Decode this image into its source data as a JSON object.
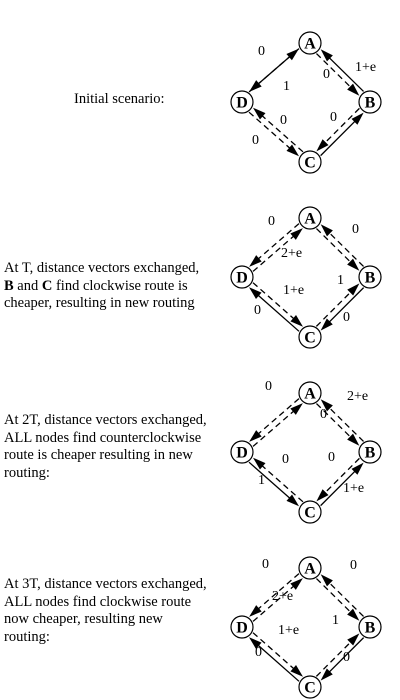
{
  "nodes": {
    "A": "A",
    "B": "B",
    "C": "C",
    "D": "D"
  },
  "panels": [
    {
      "caption": [
        {
          "text": "Initial scenario:",
          "bold": ""
        }
      ],
      "labels": {
        "DA": "0",
        "DB": "1",
        "BA": "1+e",
        "AB": "0",
        "CD": "0",
        "DC": "0",
        "BC": "0"
      }
    },
    {
      "caption": [
        {
          "text": "At T, distance vectors exchanged,",
          "bold": ""
        },
        {
          "bold": "B",
          "text": " and ",
          "bold2": "C",
          "text2": " find clockwise route is"
        },
        {
          "text": "cheaper, resulting in new routing",
          "bold": ""
        }
      ],
      "labels": {
        "DA": "0",
        "AB": "0",
        "DB": "2+e",
        "CD": "1+e",
        "DC": "0",
        "BC": "1",
        "CB": "0"
      }
    },
    {
      "caption": [
        {
          "text": "At 2T, distance vectors exchanged,",
          "bold": ""
        },
        {
          "text": "ALL nodes find counterclockwise",
          "bold": ""
        },
        {
          "text": "route is cheaper resulting in new",
          "bold": ""
        },
        {
          "text": "routing:",
          "bold": ""
        }
      ],
      "labels": {
        "AD": "0",
        "BA": "2+e",
        "AB": "0",
        "DC": "0",
        "BC": "0",
        "DL": "1",
        "CB": "1+e"
      }
    },
    {
      "caption": [
        {
          "text": "At 3T, distance vectors exchanged,",
          "bold": ""
        },
        {
          "text": "ALL nodes find clockwise route",
          "bold": ""
        },
        {
          "text": "now cheaper, resulting new",
          "bold": ""
        },
        {
          "text": "routing:",
          "bold": ""
        }
      ],
      "labels": {
        "DA": "0",
        "AB": "0",
        "DB": "2+e",
        "CD": "1+e",
        "DC": "0",
        "BC": "1",
        "CB": "0"
      }
    }
  ]
}
